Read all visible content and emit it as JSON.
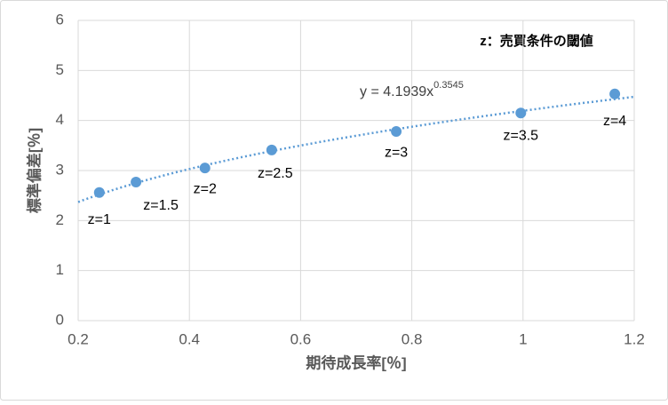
{
  "chart_data": {
    "type": "scatter",
    "x": [
      0.238,
      0.304,
      0.428,
      0.548,
      0.772,
      0.996,
      1.165
    ],
    "values": [
      2.56,
      2.77,
      3.05,
      3.41,
      3.78,
      4.15,
      4.53
    ],
    "labels": [
      "z=1",
      "z=1.5",
      "z=2",
      "z=2.5",
      "z=3",
      "z=3.5",
      "z=4"
    ],
    "color": "#5b9bd5",
    "xlim": [
      0.2,
      1.2
    ],
    "xticks": [
      0.2,
      0.4,
      0.6,
      0.8,
      1,
      1.2
    ],
    "ylim": [
      0,
      6
    ],
    "yticks": [
      0,
      1,
      2,
      3,
      4,
      5,
      6
    ],
    "grid": true,
    "x_label": "期待成長率[％]",
    "y_label": "標準偏差[％]",
    "annotation": "z：売買条件の閾値",
    "trendline": {
      "a": 4.1939,
      "b": 0.3545,
      "label": "y = 4.1939x",
      "exponent_label": "0.3545"
    }
  }
}
